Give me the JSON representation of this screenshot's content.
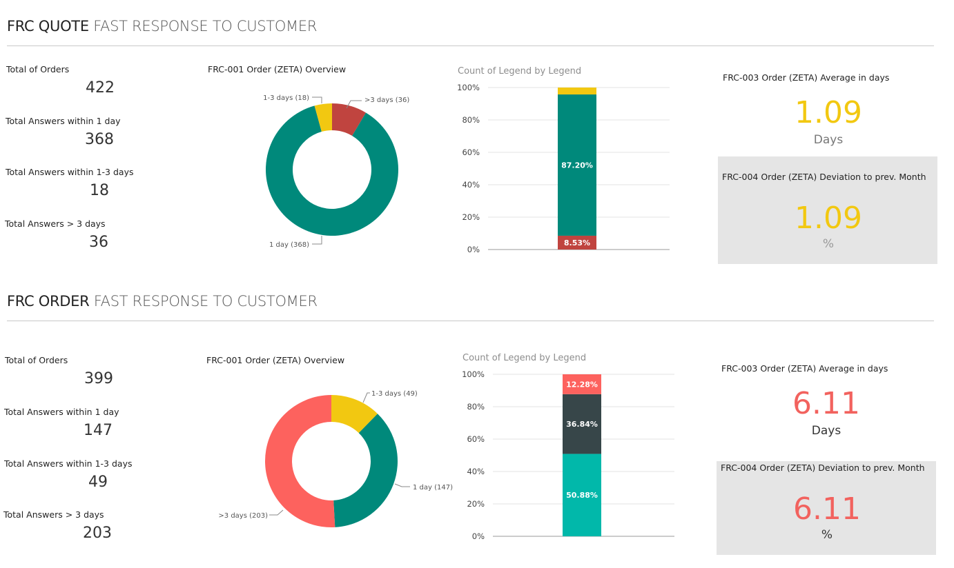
{
  "sections": [
    {
      "title_bold": "FRC QUOTE",
      "title_rest": "FAST RESPONSE TO CUSTOMER",
      "kpis": [
        {
          "label": "Total of Orders",
          "value": "422"
        },
        {
          "label": "Total Answers within 1 day",
          "value": "368"
        },
        {
          "label": "Total Answers within 1-3 days",
          "value": "18"
        },
        {
          "label": "Total Answers > 3 days",
          "value": "36"
        }
      ],
      "donut_title": "FRC-001 Order (ZETA) Overview",
      "donut_labels": {
        "one_day": "1 day (368)",
        "one_to_three": "1-3 days (18)",
        "over_three": ">3 days (36)"
      },
      "bar_title": "Count of Legend by Legend",
      "avg_card": {
        "title": "FRC-003 Order (ZETA) Average in days",
        "value": "1.09",
        "unit": "Days"
      },
      "dev_card": {
        "title": "FRC-004 Order (ZETA) Deviation to prev. Month",
        "value": "1.09",
        "unit": "%"
      }
    },
    {
      "title_bold": "FRC ORDER",
      "title_rest": "FAST RESPONSE TO CUSTOMER",
      "kpis": [
        {
          "label": "Total of Orders",
          "value": "399"
        },
        {
          "label": "Total Answers within 1 day",
          "value": "147"
        },
        {
          "label": "Total Answers within 1-3 days",
          "value": "49"
        },
        {
          "label": "Total Answers > 3 days",
          "value": "203"
        }
      ],
      "donut_title": "FRC-001 Order (ZETA) Overview",
      "donut_labels": {
        "one_day": "1 day (147)",
        "one_to_three": "1-3 days (49)",
        "over_three": ">3 days (203)"
      },
      "bar_title": "Count of Legend by Legend",
      "avg_card": {
        "title": "FRC-003 Order (ZETA) Average in days",
        "value": "6.11",
        "unit": "Days"
      },
      "dev_card": {
        "title": "FRC-004 Order (ZETA) Deviation to prev. Month",
        "value": "6.11",
        "unit": "%"
      }
    }
  ],
  "colors": {
    "teal": "#00897B",
    "yellow": "#F2C811",
    "dark_red": "#C0443F",
    "coral": "#FD625E",
    "charcoal": "#374649",
    "aqua": "#01B8AA",
    "avg_value_quote": "#F2C811",
    "avg_value_order": "#F2625E"
  },
  "chart_data": [
    {
      "type": "pie",
      "title": "FRC-001 Order (ZETA) Overview",
      "categories": [
        "1 day",
        "1-3 days",
        ">3 days"
      ],
      "values": [
        368,
        18,
        36
      ]
    },
    {
      "type": "bar",
      "title": "Count of Legend by Legend",
      "ylim": [
        0,
        100
      ],
      "yticks": [
        "0%",
        "20%",
        "40%",
        "60%",
        "80%",
        "100%"
      ],
      "stacked": true,
      "series": [
        {
          "values": [
            8.53
          ],
          "label": "8.53%"
        },
        {
          "values": [
            87.2
          ],
          "label": "87.20%"
        },
        {
          "values": [
            4.27
          ],
          "label": ""
        }
      ]
    },
    {
      "type": "pie",
      "title": "FRC-001 Order (ZETA) Overview",
      "categories": [
        "1 day",
        "1-3 days",
        ">3 days"
      ],
      "values": [
        147,
        49,
        203
      ]
    },
    {
      "type": "bar",
      "title": "Count of Legend by Legend",
      "ylim": [
        0,
        100
      ],
      "yticks": [
        "0%",
        "20%",
        "40%",
        "60%",
        "80%",
        "100%"
      ],
      "stacked": true,
      "series": [
        {
          "values": [
            50.88
          ],
          "label": "50.88%"
        },
        {
          "values": [
            36.84
          ],
          "label": "36.84%"
        },
        {
          "values": [
            12.28
          ],
          "label": "12.28%"
        }
      ]
    }
  ]
}
